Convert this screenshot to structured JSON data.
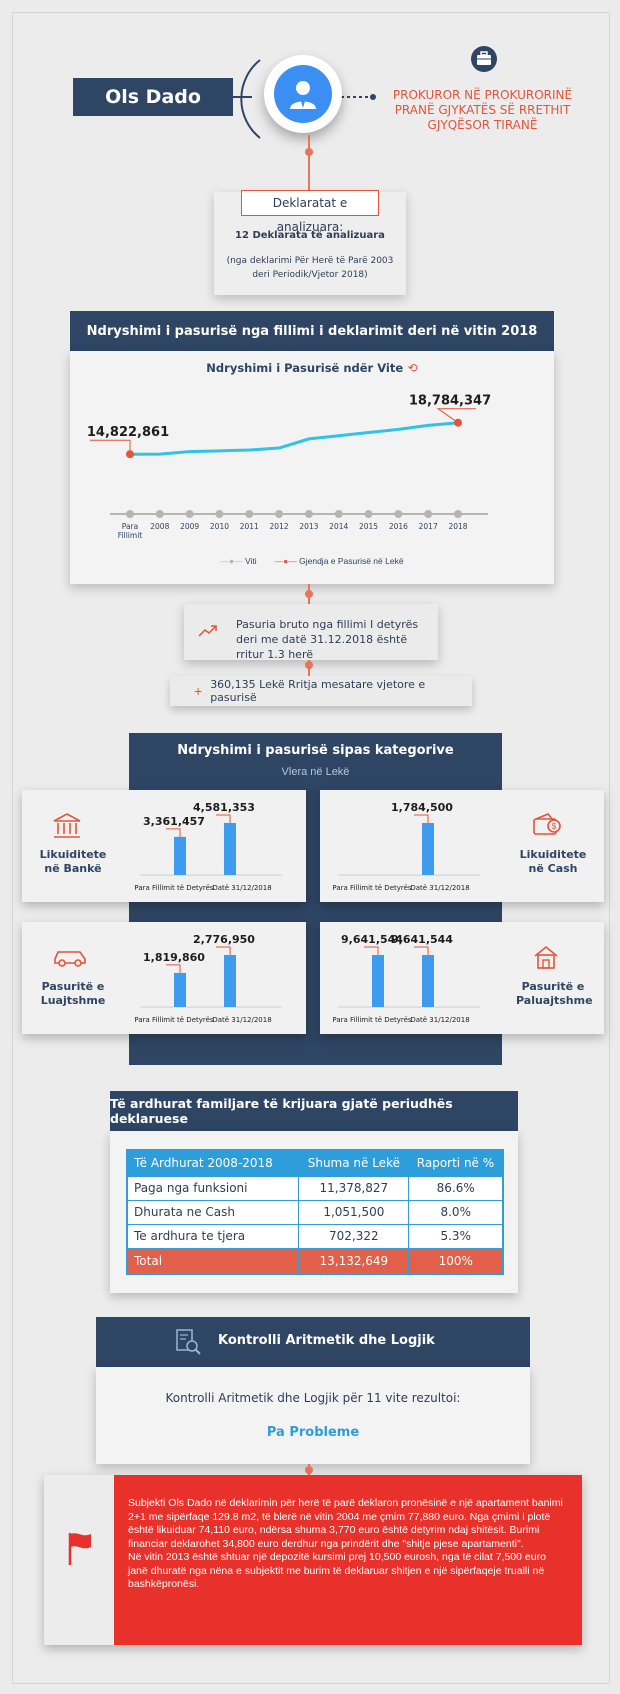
{
  "header": {
    "name": "Ols Dado",
    "position": "PROKUROR NË PROKURORINË PRANË GJYKATËS SË RRETHIT GJYQËSOR TIRANË"
  },
  "declarations": {
    "title": "Deklaratat e analizuara:",
    "count": "12 Deklarata të analizuara",
    "range": "(nga deklarimi Për Herë të Parë 2003 deri Periodik/Vjetor 2018)"
  },
  "wealth_change": {
    "title": "Ndryshimi i pasurisë nga fillimi i deklarimit deri në vitin 2018",
    "chart_title": "Ndryshimi i Pasurisë ndër Vite",
    "start_label": "14,822,861",
    "end_label": "18,784,347",
    "legend_x": "Viti",
    "legend_series": "Gjendja e Pasurisë në Lekë"
  },
  "chart_data": {
    "type": "line",
    "title": "Ndryshimi i Pasurisë ndër Vite",
    "categories": [
      "Para Fillimit",
      "2008",
      "2009",
      "2010",
      "2011",
      "2012",
      "2013",
      "2014",
      "2015",
      "2016",
      "2017",
      "2018"
    ],
    "series": [
      {
        "name": "Gjendja e Pasurisë në Lekë",
        "values": [
          14822861,
          14830000,
          15150000,
          15250000,
          15350000,
          15600000,
          16750000,
          17150000,
          17550000,
          17950000,
          18450000,
          18784347
        ]
      }
    ],
    "colors": {
      "line": "#32c2e5",
      "end_dot": "#e2553b",
      "axis_dot": "#b5b5b5"
    }
  },
  "growth_box": {
    "text": "Pasuria bruto nga fillimi I detyrës deri me datë 31.12.2018 është rritur 1.3 herë",
    "annual": "360,135 Lekë Rritja mesatare vjetore e pasurisë",
    "plus_symbol": "+"
  },
  "categories_section": {
    "title": "Ndryshimi i pasurisë sipas kategorive",
    "subtitle": "Vlera në Lekë",
    "cards": [
      {
        "name": "Likuiditete në Bankë",
        "before_label": "Para Fillimit të Detyrës",
        "after_label": "Datë 31/12/2018",
        "before": 3361457,
        "after": 4581353,
        "before_text": "3,361,457",
        "after_text": "4,581,353"
      },
      {
        "name": "Likuiditete në Cash",
        "before_label": "Para Fillimit të Detyrës",
        "after_label": "Datë 31/12/2018",
        "before": 0,
        "after": 1784500,
        "before_text": "",
        "after_text": "1,784,500"
      },
      {
        "name": "Pasuritë e Luajtshme",
        "before_label": "Para Fillimit të Detyrës",
        "after_label": "Datë 31/12/2018",
        "before": 1819860,
        "after": 2776950,
        "before_text": "1,819,860",
        "after_text": "2,776,950"
      },
      {
        "name": "Pasuritë e Paluajtshme",
        "before_label": "Para Fillimit të Detyrës",
        "after_label": "Datë 31/12/2018",
        "before": 9641544,
        "after": 9641544,
        "before_text": "9,641,544",
        "after_text": "9,641,544"
      }
    ],
    "bar_color": "#3d9bf0"
  },
  "income": {
    "title": "Të ardhurat familjare të krijuara gjatë periudhës deklaruese",
    "headers": [
      "Të Ardhurat 2008-2018",
      "Shuma në Lekë",
      "Raporti në %"
    ],
    "rows": [
      [
        "Paga nga funksioni",
        "11,378,827",
        "86.6%"
      ],
      [
        "Dhurata ne Cash",
        "1,051,500",
        "8.0%"
      ],
      [
        "Te ardhura te tjera",
        "702,322",
        "5.3%"
      ]
    ],
    "total": [
      "Total",
      "13,132,649",
      "100%"
    ],
    "colors": {
      "header": "#2d9ed9",
      "total": "#e2604a"
    }
  },
  "control": {
    "title": "Kontrolli Aritmetik dhe Logjik",
    "text": "Kontrolli Aritmetik dhe Logjik për 11 vite rezultoi:",
    "result": "Pa Probleme"
  },
  "note": {
    "text": "Subjekti Ols Dado në deklarimin për herë të parë deklaron pronësinë e një apartament banimi 2+1 me sipërfaqe 129.8 m2, të blerë  në vitin 2004 me çmim 77,880 euro. Nga çmimi i plotë është likuiduar 74,110 euro, ndërsa shuma 3,770 euro është detyrim ndaj shitësit. Burimi financiar deklarohet 34,800 euro derdhur nga prindërit dhe \"shitje pjese apartamenti\".\nNë vitin 2013 është shtuar një depozitë kursimi prej 10,500 eurosh, nga të cilat 7,500 euro janë dhuratë nga nëna e subjektit me burim të deklaruar shitjen e një sipërfaqeje trualli në bashkëpronësi.",
    "color": "#e8312a"
  }
}
